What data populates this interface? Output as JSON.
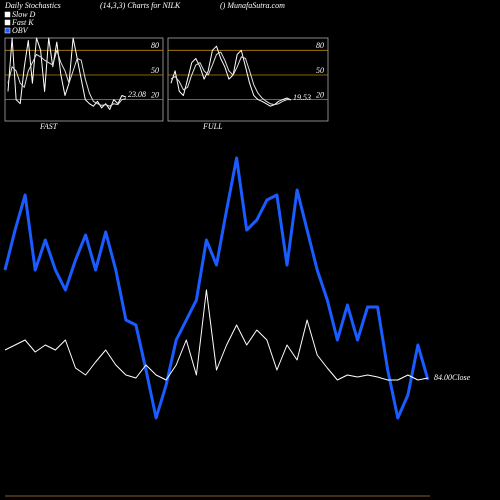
{
  "header": {
    "title": "Daily Stochastics",
    "subtitle": "(14,3,3) Charts for NILK",
    "source": "() MunafaSutra.com"
  },
  "legend": [
    {
      "name": "Slow D",
      "color": "#ffffff"
    },
    {
      "name": "Fast K",
      "color": "#ffffff"
    },
    {
      "name": "OBV",
      "color": "#1a5cff"
    }
  ],
  "chart_data": [
    {
      "type": "line",
      "label": "FAST",
      "ylim": [
        -6,
        95
      ],
      "yticks": [
        80,
        50,
        20
      ],
      "grid_color": "#b8860b",
      "series": [
        {
          "color": "#ffffff",
          "values": [
            30,
            95,
            20,
            15,
            60,
            92,
            40,
            95,
            80,
            30,
            95,
            60,
            90,
            50,
            25,
            40,
            95,
            70,
            45,
            20,
            15,
            12,
            18,
            10,
            15,
            8,
            20,
            15,
            25,
            23.08
          ]
        },
        {
          "color": "#dddddd",
          "values": [
            40,
            60,
            55,
            40,
            35,
            55,
            65,
            75,
            72,
            68,
            65,
            62,
            80,
            65,
            55,
            40,
            55,
            70,
            68,
            45,
            28,
            18,
            15,
            13,
            14,
            12,
            15,
            14,
            20,
            21
          ]
        }
      ]
    },
    {
      "type": "line",
      "label": "FULL",
      "ylim": [
        -6,
        95
      ],
      "yticks": [
        80,
        50,
        20
      ],
      "grid_color": "#b8860b",
      "series": [
        {
          "color": "#ffffff",
          "values": [
            40,
            55,
            30,
            25,
            45,
            65,
            70,
            60,
            45,
            55,
            80,
            85,
            70,
            60,
            45,
            50,
            75,
            80,
            60,
            40,
            25,
            20,
            18,
            15,
            12,
            14,
            18,
            20,
            22,
            19.53
          ]
        },
        {
          "color": "#dddddd",
          "values": [
            45,
            48,
            42,
            32,
            35,
            50,
            62,
            65,
            55,
            50,
            62,
            75,
            78,
            68,
            55,
            50,
            60,
            72,
            70,
            55,
            38,
            28,
            22,
            18,
            15,
            14,
            15,
            18,
            20,
            20
          ]
        }
      ]
    },
    {
      "type": "line",
      "ylim": [
        0,
        300
      ],
      "annotation": "84.00Close",
      "series": [
        {
          "name": "OBV",
          "color": "#1a5cff",
          "width": 3,
          "values": [
            170,
            210,
            245,
            170,
            200,
            170,
            150,
            180,
            205,
            170,
            208,
            170,
            120,
            115,
            70,
            22,
            55,
            100,
            120,
            140,
            200,
            175,
            230,
            282,
            210,
            220,
            240,
            245,
            175,
            250,
            210,
            170,
            140,
            100,
            135,
            100,
            133,
            133,
            70,
            22,
            45,
            95,
            60
          ]
        },
        {
          "color": "#ffffff",
          "width": 1,
          "values": [
            90,
            95,
            100,
            88,
            95,
            90,
            100,
            72,
            65,
            78,
            90,
            75,
            65,
            62,
            75,
            65,
            60,
            75,
            100,
            65,
            150,
            70,
            95,
            115,
            95,
            110,
            100,
            70,
            95,
            80,
            120,
            85,
            72,
            60,
            65,
            63,
            65,
            63,
            60,
            60,
            65,
            60,
            62
          ]
        }
      ]
    }
  ]
}
